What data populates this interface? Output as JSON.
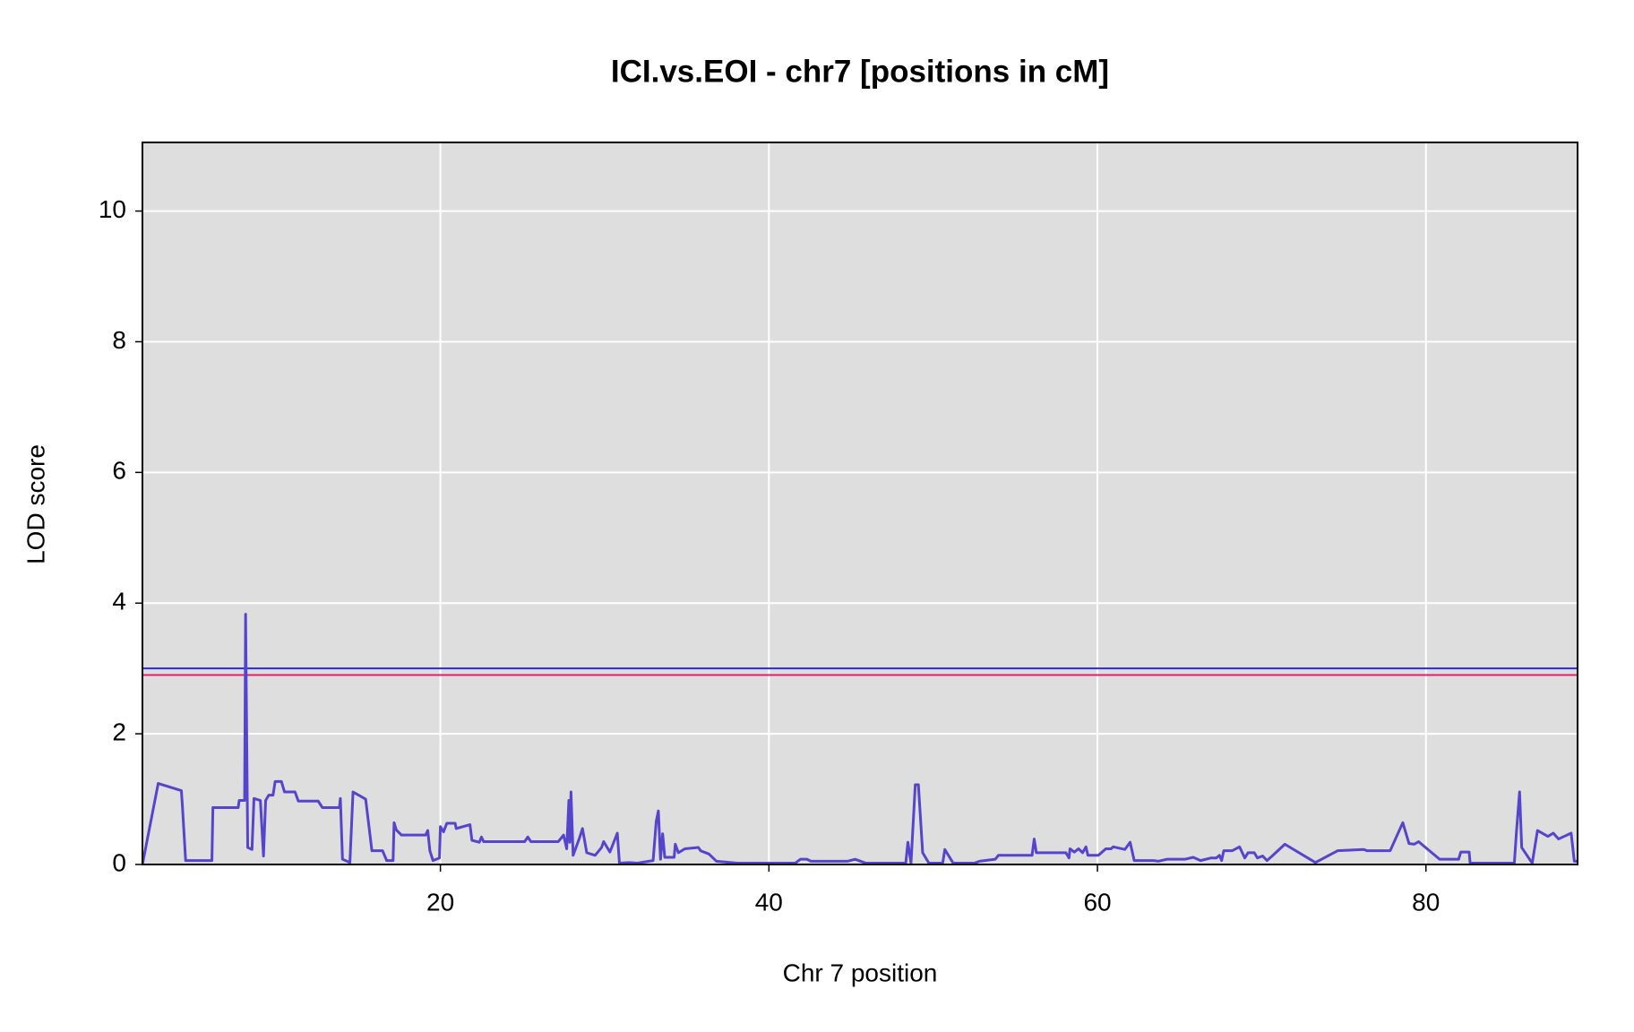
{
  "chart_data": {
    "type": "line",
    "title": "ICI.vs.EOI - chr7 [positions in cM]",
    "x_label": "Chr 7 position",
    "y_label": "LOD score",
    "xlim": [
      1.86,
      89.23
    ],
    "ylim": [
      0,
      11.05
    ],
    "xticks": [
      20,
      40,
      60,
      80
    ],
    "yticks": [
      0,
      2,
      4,
      6,
      8,
      10
    ],
    "grid": true,
    "thresholds": [
      {
        "value": 3.0,
        "color": "#2a2ae0"
      },
      {
        "value": 2.9,
        "color": "#e0206a"
      }
    ],
    "series": [
      {
        "color": "#5544cc",
        "x": [
          1.86,
          2.82,
          4.23,
          4.3,
          4.49,
          6.09,
          6.15,
          7.69,
          7.75,
          8.08,
          8.14,
          8.27,
          8.53,
          8.65,
          9.04,
          9.23,
          9.36,
          9.55,
          9.81,
          9.94,
          10.32,
          10.51,
          11.15,
          11.35,
          12.56,
          12.82,
          13.85,
          13.91,
          14.04,
          14.49,
          14.68,
          15.45,
          15.83,
          16.48,
          16.73,
          17.12,
          17.18,
          17.31,
          17.63,
          19.1,
          19.23,
          19.36,
          19.55,
          19.94,
          20.0,
          20.19,
          20.39,
          20.9,
          20.96,
          21.8,
          21.92,
          22.37,
          22.5,
          22.63,
          25.13,
          25.32,
          25.51,
          27.18,
          27.5,
          27.69,
          27.82,
          27.88,
          27.95,
          28.08,
          28.46,
          28.65,
          28.91,
          29.42,
          29.81,
          29.94,
          30.32,
          30.77,
          30.9,
          31.48,
          31.99,
          32.95,
          33.14,
          33.27,
          33.4,
          33.53,
          33.66,
          34.23,
          34.3,
          34.49,
          34.88,
          35.71,
          35.84,
          36.35,
          36.8,
          38.08,
          39.36,
          41.6,
          41.92,
          42.31,
          42.56,
          44.8,
          45.25,
          45.9,
          48.33,
          48.46,
          48.65,
          48.91,
          49.1,
          49.36,
          49.74,
          50.58,
          50.71,
          51.22,
          52.5,
          52.82,
          53.78,
          53.97,
          56.02,
          56.15,
          56.28,
          58.08,
          58.27,
          58.33,
          58.59,
          58.85,
          59.1,
          59.3,
          59.42,
          60.06,
          60.51,
          60.83,
          60.96,
          61.67,
          61.99,
          62.24,
          63.4,
          63.72,
          64.23,
          65.32,
          65.83,
          66.28,
          66.92,
          67.24,
          67.43,
          67.56,
          67.69,
          68.2,
          68.65,
          68.97,
          69.17,
          69.55,
          69.74,
          70.06,
          70.32,
          70.64,
          71.41,
          73.27,
          74.62,
          76.22,
          76.41,
          77.82,
          78.59,
          78.97,
          79.29,
          79.55,
          80.83,
          81.99,
          82.12,
          82.63,
          82.69,
          85.38,
          85.51,
          85.7,
          85.83,
          86.47,
          86.79,
          87.43,
          87.75,
          88.07,
          88.84,
          89.03,
          89.23
        ],
        "values": [
          0,
          1.24,
          1.13,
          0.87,
          0.06,
          0.06,
          0.87,
          0.87,
          0.98,
          0.98,
          3.83,
          0.26,
          0.23,
          1.01,
          0.98,
          0.13,
          0.98,
          1.06,
          1.06,
          1.27,
          1.27,
          1.11,
          1.11,
          0.97,
          0.97,
          0.87,
          0.87,
          1.01,
          0.08,
          0.03,
          1.11,
          1.0,
          0.21,
          0.21,
          0.06,
          0.06,
          0.64,
          0.53,
          0.45,
          0.45,
          0.52,
          0.21,
          0.06,
          0.1,
          0.58,
          0.5,
          0.63,
          0.63,
          0.55,
          0.61,
          0.37,
          0.34,
          0.42,
          0.35,
          0.35,
          0.42,
          0.35,
          0.35,
          0.45,
          0.24,
          0.98,
          0.34,
          1.11,
          0.14,
          0.4,
          0.55,
          0.18,
          0.14,
          0.26,
          0.35,
          0.19,
          0.48,
          0.02,
          0.03,
          0.02,
          0.06,
          0.66,
          0.82,
          0.08,
          0.47,
          0.11,
          0.11,
          0.31,
          0.18,
          0.24,
          0.26,
          0.21,
          0.16,
          0.05,
          0.02,
          0.02,
          0.02,
          0.08,
          0.08,
          0.05,
          0.05,
          0.08,
          0.02,
          0.02,
          0.34,
          0.02,
          1.22,
          1.22,
          0.18,
          0.02,
          0.02,
          0.23,
          0.02,
          0.02,
          0.05,
          0.08,
          0.14,
          0.14,
          0.39,
          0.18,
          0.18,
          0.1,
          0.24,
          0.19,
          0.24,
          0.18,
          0.27,
          0.14,
          0.14,
          0.24,
          0.24,
          0.27,
          0.23,
          0.34,
          0.06,
          0.06,
          0.05,
          0.08,
          0.08,
          0.11,
          0.06,
          0.1,
          0.1,
          0.14,
          0.06,
          0.21,
          0.21,
          0.27,
          0.1,
          0.18,
          0.18,
          0.1,
          0.13,
          0.06,
          0.13,
          0.31,
          0.03,
          0.21,
          0.23,
          0.21,
          0.21,
          0.64,
          0.32,
          0.31,
          0.35,
          0.08,
          0.08,
          0.19,
          0.19,
          0.02,
          0.02,
          0.5,
          1.11,
          0.26,
          0.02,
          0.52,
          0.43,
          0.48,
          0.39,
          0.48,
          0.05,
          0.05
        ]
      }
    ]
  }
}
